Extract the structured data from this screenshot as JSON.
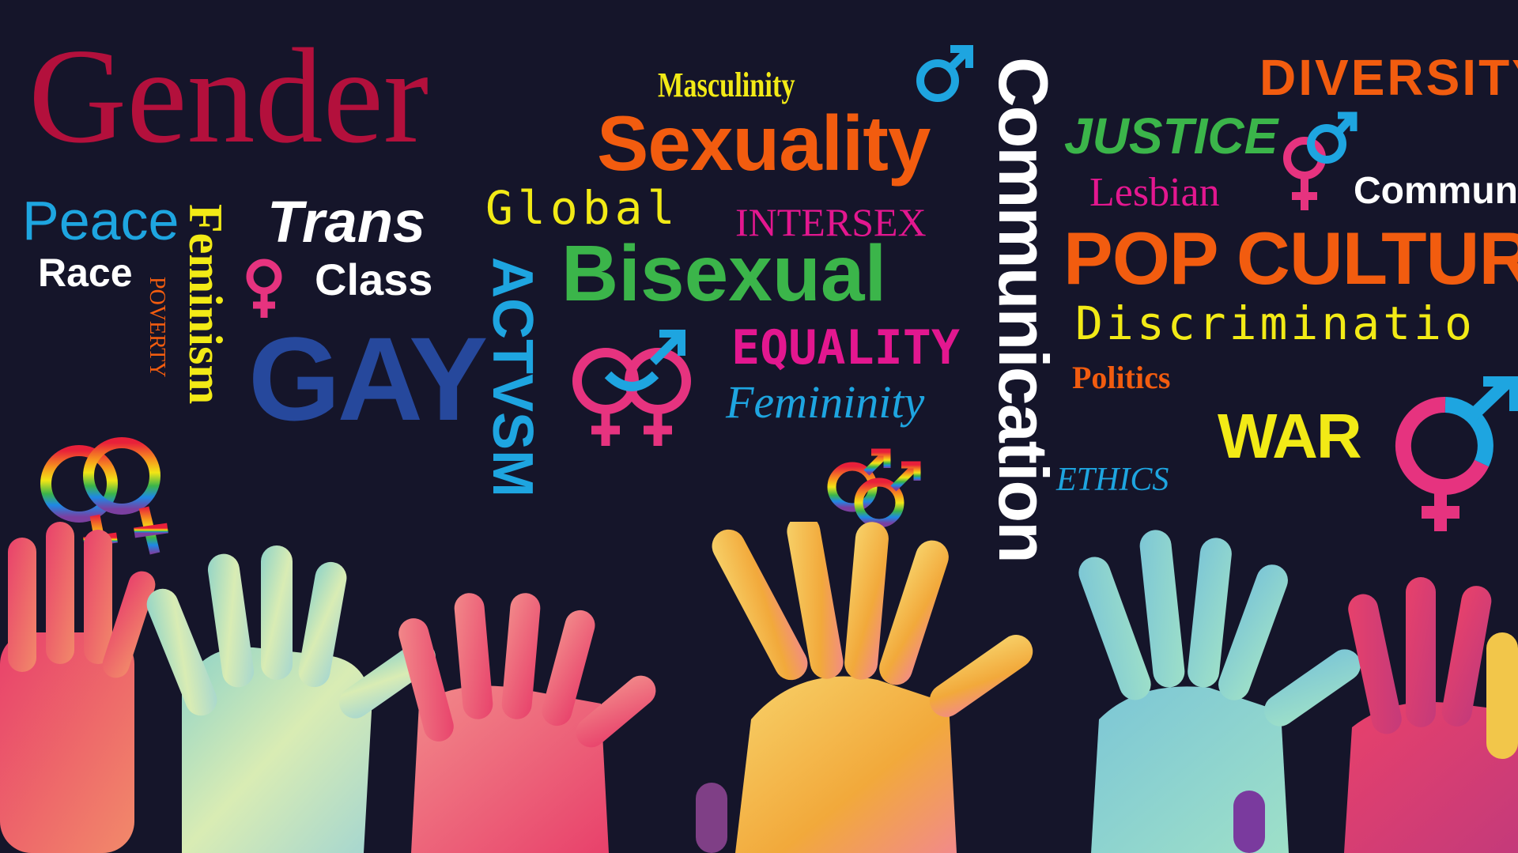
{
  "words": {
    "gender": "Gender",
    "masculinity": "Masculinity",
    "sexuality": "Sexuality",
    "communication_vertical": "Communication",
    "diversity": "DIVERSITY",
    "justice": "JUSTICE",
    "lesbian": "Lesbian",
    "community": "Communi",
    "peace": "Peace",
    "race": "Race",
    "feminism": "Feminism",
    "poverty": "POVERTY",
    "trans": "Trans",
    "class": "Class",
    "gay": "GAY",
    "global": "Global",
    "activism": "ACTVSM",
    "intersex": "INTERSEX",
    "bisexual": "Bisexual",
    "equality": "EQUALITY",
    "femininity": "Femininity",
    "pop_culture": "POP CULTUR",
    "discrimination": "Discriminatio",
    "politics": "Politics",
    "war": "WAR",
    "ethics": "ETHICS"
  },
  "colors": {
    "background": "#15152a",
    "crimson": "#b3103c",
    "yellow": "#f2ea16",
    "orange": "#f25c0f",
    "white": "#ffffff",
    "green": "#3bb54a",
    "magenta": "#e3178f",
    "blue": "#1ea5e0",
    "navy": "#26489c",
    "pink": "#e6337f"
  },
  "icons": [
    "male-symbol-icon",
    "male-symbol-icon-2",
    "venus-mars-symbol-icon",
    "venus-symbol-icon",
    "double-mars-pink-blue-icon",
    "double-venus-rainbow-icon",
    "double-mars-rainbow-icon",
    "transgender-symbol-large-icon",
    "raised-hands-illustration"
  ]
}
